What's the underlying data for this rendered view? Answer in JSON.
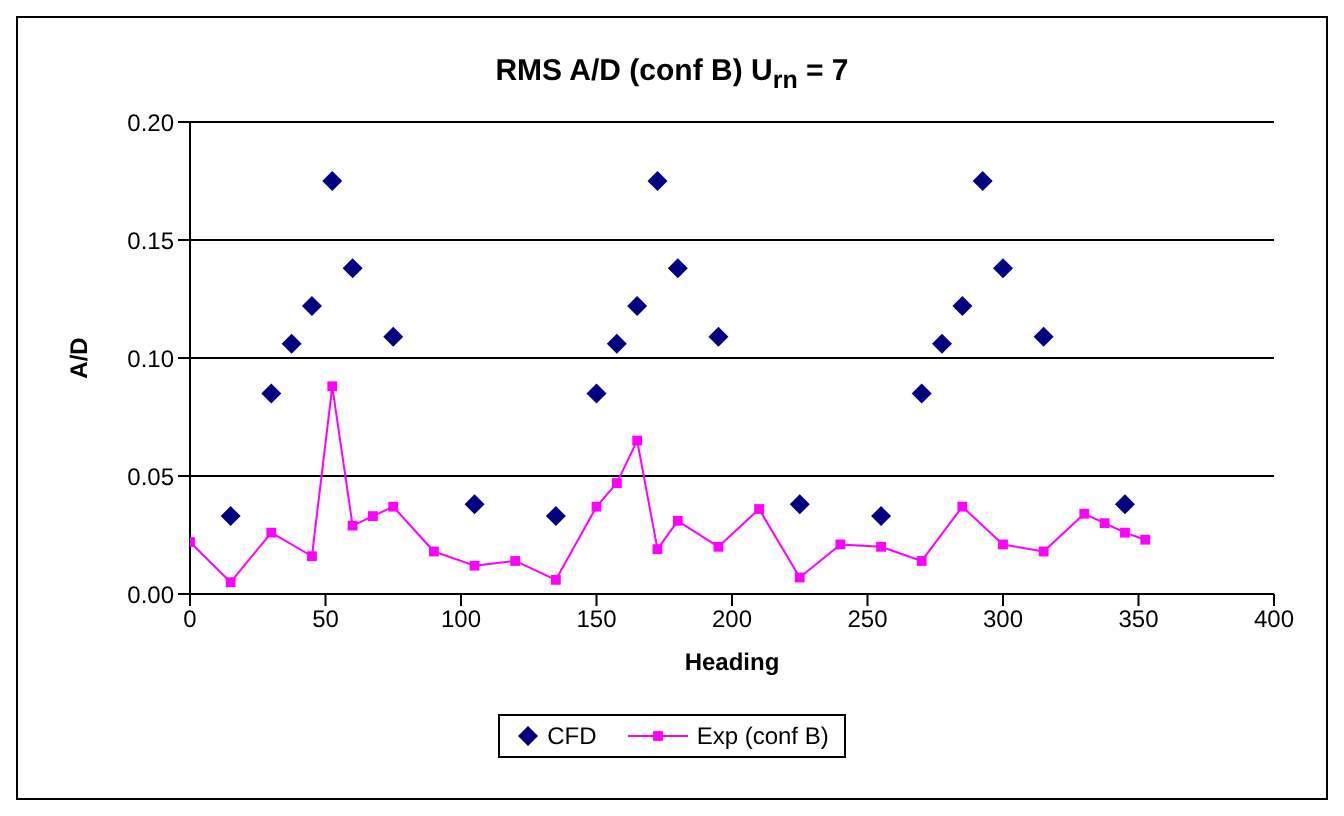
{
  "chart_data": {
    "type": "scatter",
    "title": "RMS A/D (conf B) U$_{rn}$ = 7",
    "xlabel": "Heading",
    "ylabel": "A/D",
    "xlim": [
      0,
      400
    ],
    "xticks": [
      0,
      50,
      100,
      150,
      200,
      250,
      300,
      350,
      400
    ],
    "ylim": [
      0,
      0.2
    ],
    "yticks": [
      {
        "value": 0,
        "label": "0.00"
      },
      {
        "value": 0.05,
        "label": "0.05"
      },
      {
        "value": 0.1,
        "label": "0.10"
      },
      {
        "value": 0.15,
        "label": "0.15"
      },
      {
        "value": 0.2,
        "label": "0.20"
      }
    ],
    "grid": "y",
    "legend": "bottom",
    "series": [
      {
        "name": "CFD",
        "marker": "diamond",
        "color": "#000080",
        "x": [
          15,
          30,
          37.5,
          45,
          52.5,
          60,
          75,
          105,
          135,
          150,
          157.5,
          165,
          172.5,
          180,
          195,
          225,
          255,
          270,
          277.5,
          285,
          292.5,
          300,
          315,
          345
        ],
        "values": [
          0.033,
          0.085,
          0.106,
          0.122,
          0.175,
          0.138,
          0.109,
          0.038,
          0.033,
          0.085,
          0.106,
          0.122,
          0.175,
          0.138,
          0.109,
          0.038,
          0.033,
          0.085,
          0.106,
          0.122,
          0.175,
          0.138,
          0.109,
          0.038
        ]
      },
      {
        "name": "Exp (conf B)",
        "type": "line",
        "marker": "square",
        "color": "#ff00ff",
        "x": [
          0,
          15,
          30,
          45,
          52.5,
          60,
          67.5,
          75,
          90,
          105,
          120,
          135,
          150,
          157.5,
          165,
          172.5,
          180,
          195,
          210,
          225,
          240,
          255,
          270,
          285,
          300,
          315,
          330,
          337.5,
          345,
          352.5
        ],
        "values": [
          0.022,
          0.005,
          0.026,
          0.016,
          0.088,
          0.029,
          0.033,
          0.037,
          0.018,
          0.012,
          0.014,
          0.006,
          0.037,
          0.047,
          0.065,
          0.019,
          0.031,
          0.02,
          0.036,
          0.007,
          0.021,
          0.02,
          0.014,
          0.037,
          0.021,
          0.018,
          0.034,
          0.03,
          0.026,
          0.023
        ]
      }
    ]
  }
}
